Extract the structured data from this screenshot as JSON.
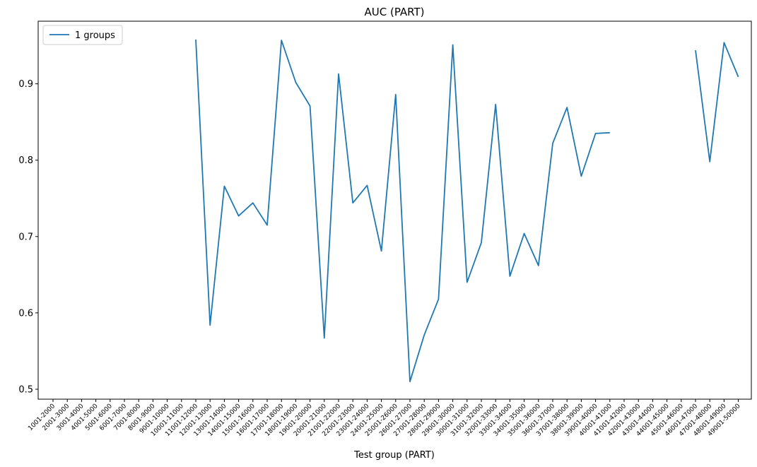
{
  "chart_data": {
    "type": "line",
    "title": "AUC (PART)",
    "xlabel": "Test group (PART)",
    "ylabel": "",
    "ylim": [
      0.487,
      0.982
    ],
    "yticks": [
      0.5,
      0.6,
      0.7,
      0.8,
      0.9
    ],
    "ytick_labels": [
      "0.5",
      "0.6",
      "0.7",
      "0.8",
      "0.9"
    ],
    "grid": false,
    "legend_position": "top-left",
    "color": "#1f77b4",
    "categories": [
      "1001-2000",
      "2001-3000",
      "3001-4000",
      "4001-5000",
      "5001-6000",
      "6001-7000",
      "7001-8000",
      "8001-9000",
      "9001-10000",
      "10001-11000",
      "11001-12000",
      "12001-13000",
      "13001-14000",
      "14001-15000",
      "15001-16000",
      "16001-17000",
      "17001-18000",
      "18001-19000",
      "19001-20000",
      "20001-21000",
      "21001-22000",
      "22001-23000",
      "23001-24000",
      "24001-25000",
      "25001-26000",
      "26001-27000",
      "27001-28000",
      "28001-29000",
      "29001-30000",
      "30001-31000",
      "31001-32000",
      "32001-33000",
      "33001-34000",
      "34001-35000",
      "35001-36000",
      "36001-37000",
      "37001-38000",
      "38001-39000",
      "39001-40000",
      "40001-41000",
      "41001-42000",
      "42001-43000",
      "43001-44000",
      "44001-45000",
      "45001-46000",
      "46001-47000",
      "47001-48000",
      "48001-49000",
      "49001-50000"
    ],
    "series": [
      {
        "name": "1 groups",
        "values": [
          null,
          null,
          null,
          null,
          null,
          null,
          null,
          null,
          null,
          null,
          0.958,
          0.584,
          0.766,
          0.727,
          0.744,
          0.715,
          0.957,
          0.902,
          0.871,
          0.567,
          0.913,
          0.744,
          0.767,
          0.681,
          0.886,
          0.51,
          0.571,
          0.618,
          0.951,
          0.64,
          0.692,
          0.873,
          0.648,
          0.704,
          0.662,
          0.822,
          0.869,
          0.779,
          0.835,
          0.836,
          null,
          null,
          null,
          null,
          null,
          0.944,
          0.798,
          0.954,
          0.909
        ]
      }
    ]
  }
}
